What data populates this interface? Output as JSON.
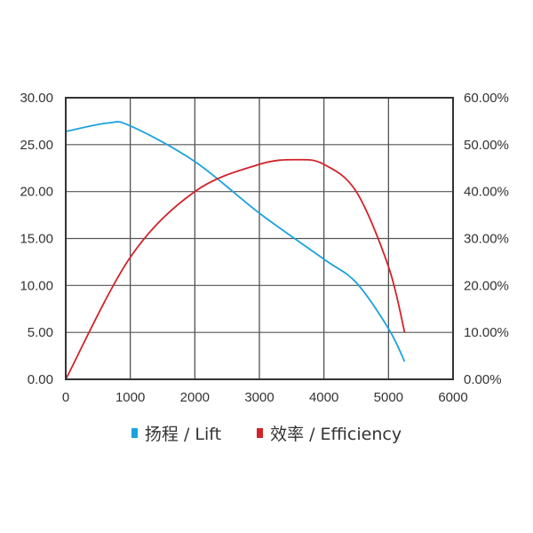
{
  "chart_data": {
    "type": "line",
    "title": "",
    "xlabel": "",
    "ylabel": "",
    "y2label": "",
    "xlim": [
      0,
      6000
    ],
    "ylim": [
      0,
      30
    ],
    "y2lim": [
      0,
      60
    ],
    "grid": true,
    "legend_position": "bottom",
    "x_ticks": [
      "0",
      "1000",
      "2000",
      "3000",
      "4000",
      "5000",
      "6000"
    ],
    "y_ticks": [
      "0.00",
      "5.00",
      "10.00",
      "15.00",
      "20.00",
      "25.00",
      "30.00"
    ],
    "y2_ticks": [
      "0.00%",
      "10.00%",
      "20.00%",
      "30.00%",
      "40.00%",
      "50.00%",
      "60.00%"
    ],
    "series": [
      {
        "name": "扬程 / Lift",
        "axis": "left",
        "color": "#1aa3dc",
        "x": [
          0,
          650,
          1000,
          2000,
          3000,
          4000,
          4500,
          5000,
          5250
        ],
        "values": [
          26.4,
          27.3,
          27.0,
          23.2,
          17.7,
          12.8,
          10.3,
          5.4,
          1.9
        ]
      },
      {
        "name": "效率 / Efficiency",
        "axis": "right",
        "color": "#d2232a",
        "x": [
          0,
          1000,
          2000,
          3000,
          3600,
          4000,
          4500,
          5000,
          5250
        ],
        "values": [
          0,
          26,
          40,
          45.8,
          46.8,
          45.8,
          40,
          24,
          10
        ]
      }
    ]
  },
  "legend": [
    {
      "label": "扬程 / Lift",
      "color": "#1aa3dc"
    },
    {
      "label": "效率 / Efficiency",
      "color": "#d2232a"
    }
  ]
}
